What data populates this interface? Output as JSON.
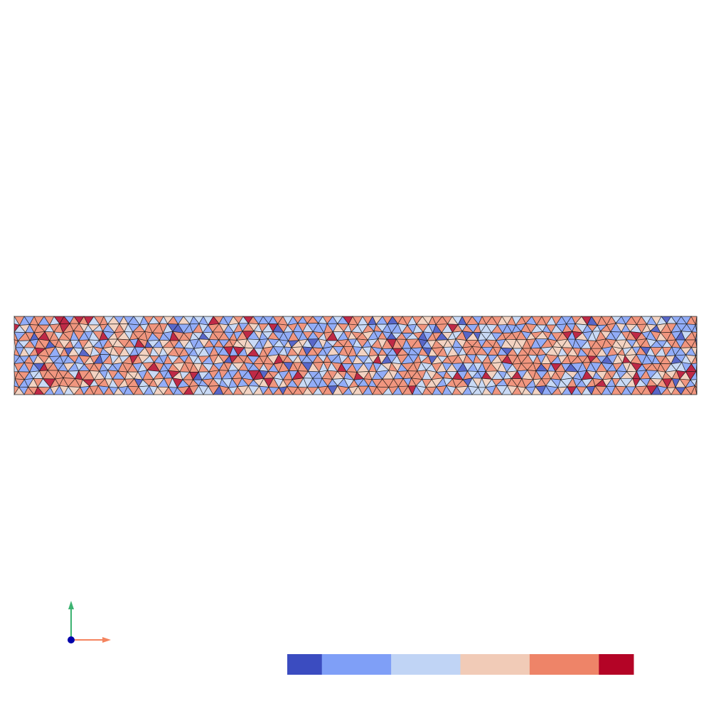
{
  "colormap": {
    "colors": [
      "#3b4cc0",
      "#7f9ff7",
      "#c0d4f5",
      "#f1cbb7",
      "#ee8468",
      "#b40426"
    ]
  },
  "axes": {
    "x_color": "#f4845f",
    "y_color": "#3cb371",
    "origin_color": "#0000aa"
  }
}
